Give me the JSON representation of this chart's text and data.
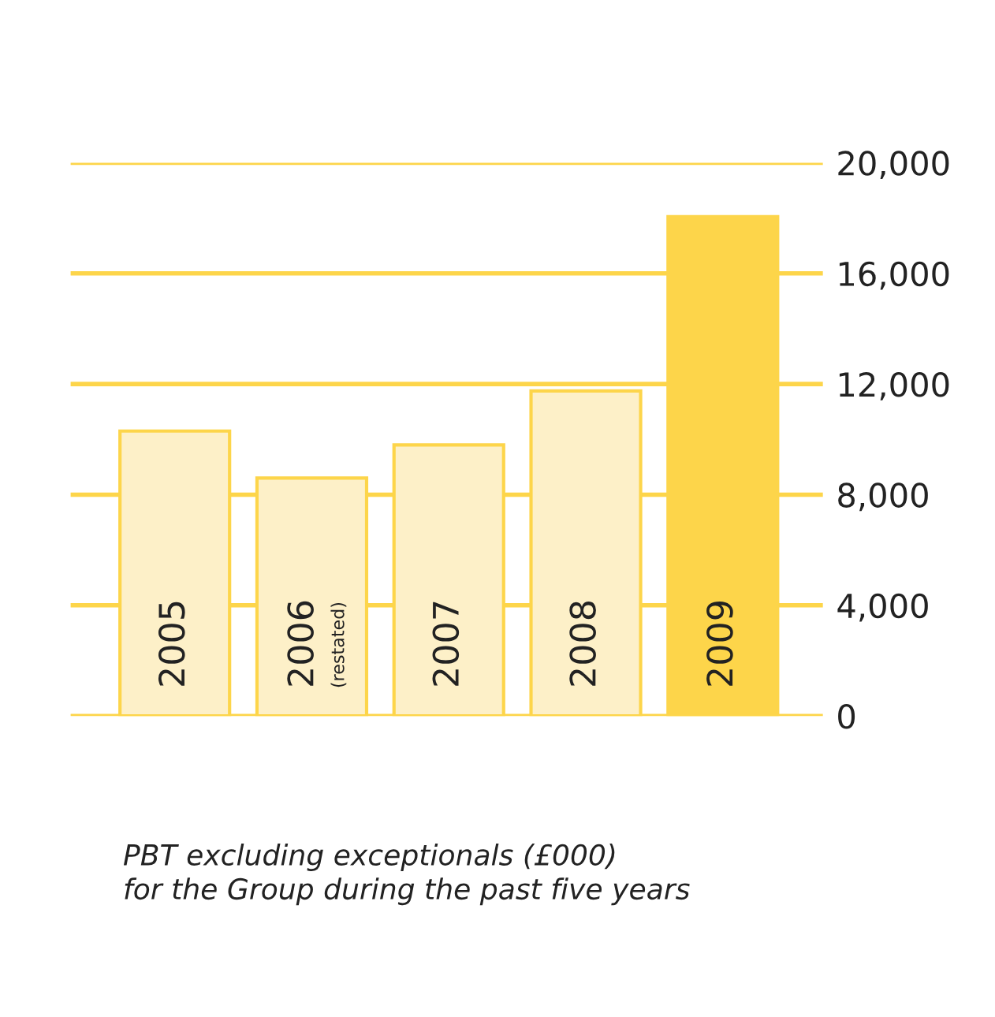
{
  "chart_data": {
    "type": "bar",
    "categories": [
      "2005",
      "2006\n(restated)",
      "2007",
      "2008",
      "2009"
    ],
    "values": [
      10300,
      8600,
      9800,
      11750,
      18050
    ],
    "colors": [
      "#fdf0c8",
      "#fdf0c8",
      "#fdf0c8",
      "#fdf0c8",
      "#fdd54a"
    ],
    "ylim": [
      0,
      20000
    ],
    "yticks": [
      {
        "value": 0,
        "label": "0"
      },
      {
        "value": 4000,
        "label": "4,000"
      },
      {
        "value": 8000,
        "label": "8,000"
      },
      {
        "value": 12000,
        "label": "12,000"
      },
      {
        "value": 16000,
        "label": "16,000"
      },
      {
        "value": 20000,
        "label": "20,000"
      }
    ],
    "grid": "y",
    "annotations": [
      "PBT excluding exceptionals (£000)\nfor the Group during the past five years"
    ]
  }
}
